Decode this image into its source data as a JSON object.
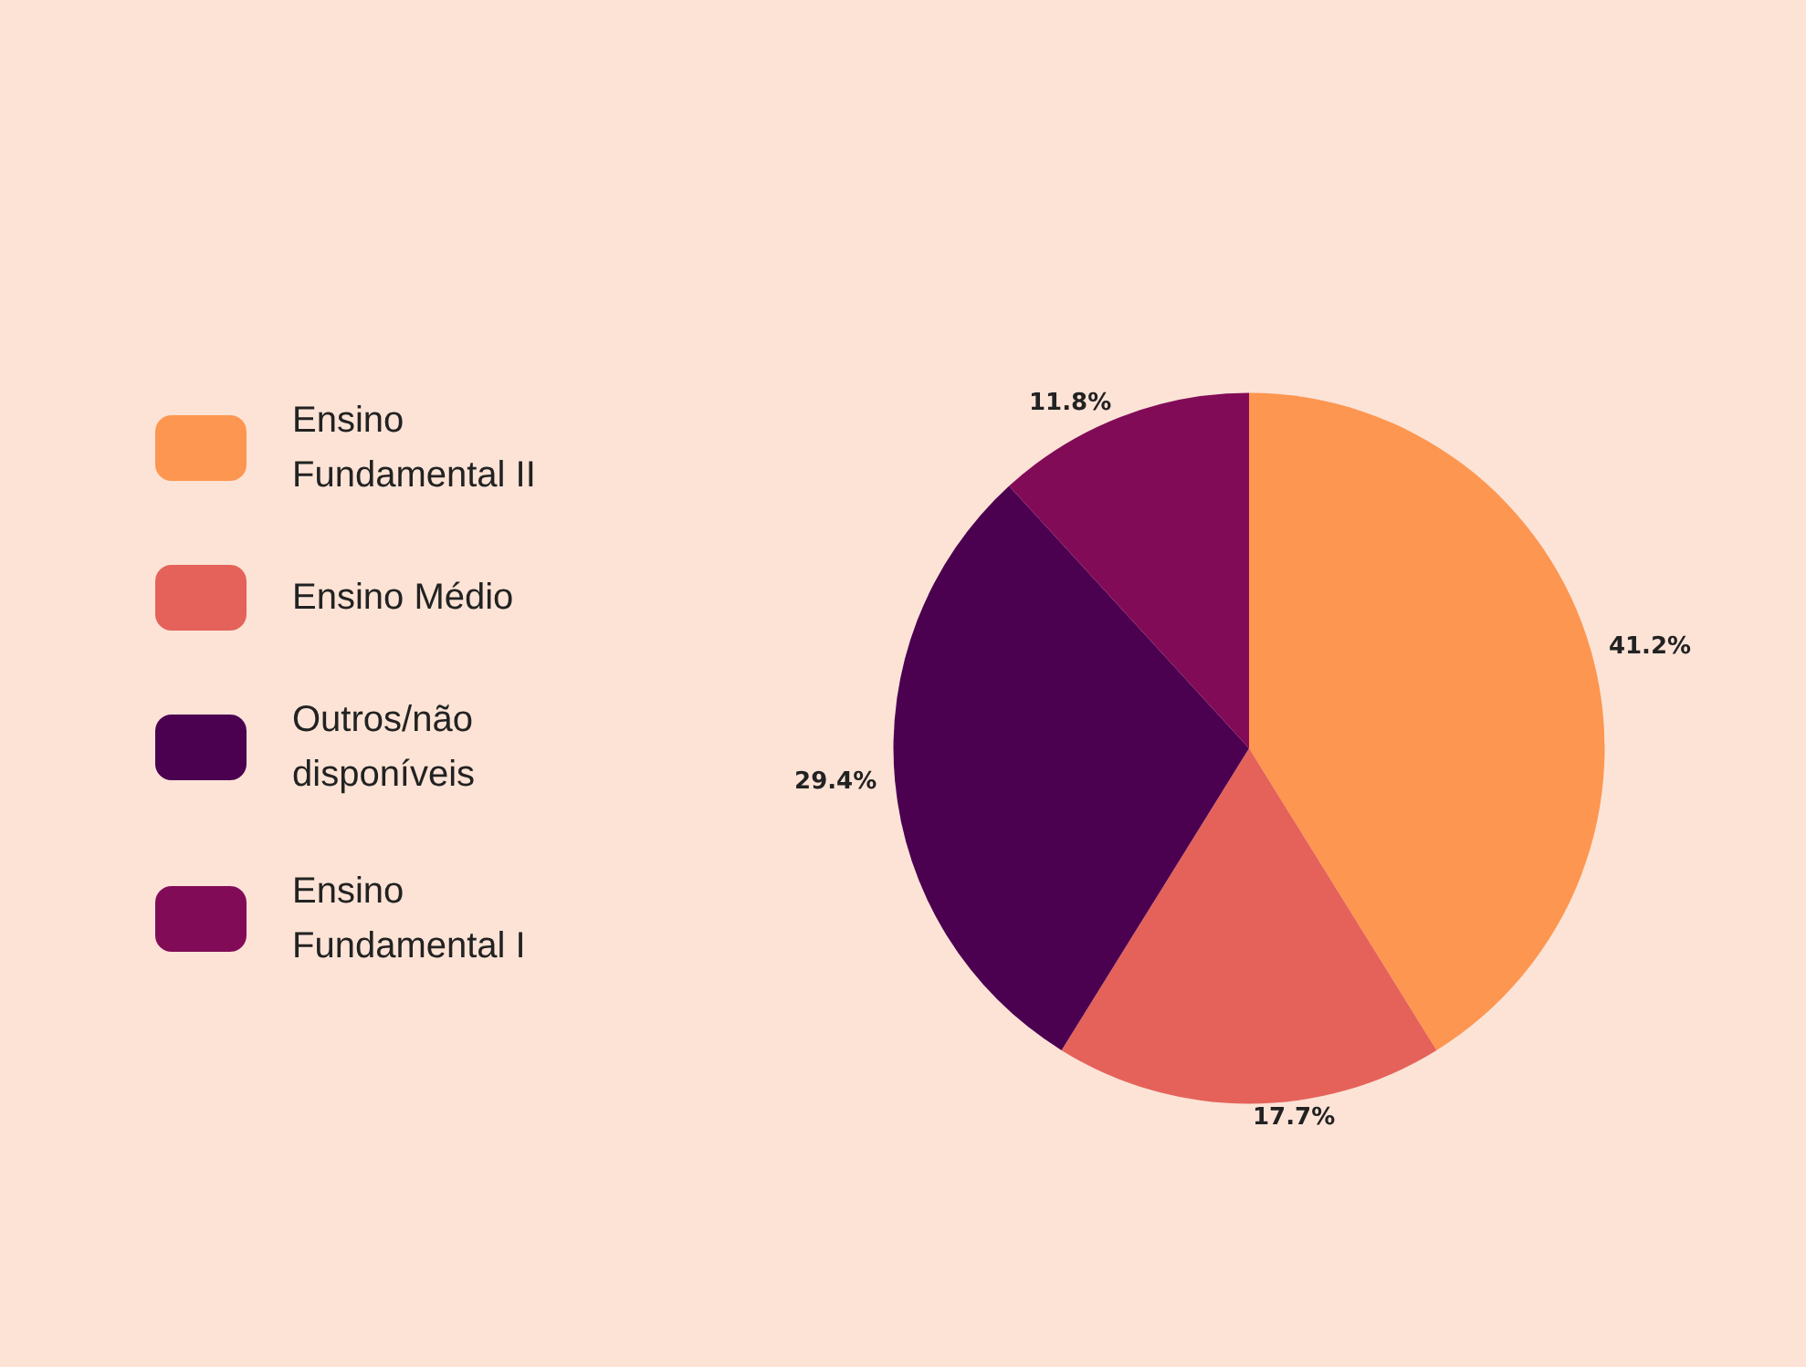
{
  "chart_data": {
    "type": "pie",
    "categories": [
      "Ensino Fundamental II",
      "Ensino Médio",
      "Outros/não disponíveis",
      "Ensino Fundamental I"
    ],
    "values": [
      41.2,
      17.7,
      29.4,
      11.8
    ],
    "colors": [
      "#fd9650",
      "#e5625a",
      "#4b0050",
      "#820b58"
    ],
    "value_labels": [
      "41.2%",
      "17.7%",
      "29.4%",
      "11.8%"
    ],
    "legend": "left"
  }
}
